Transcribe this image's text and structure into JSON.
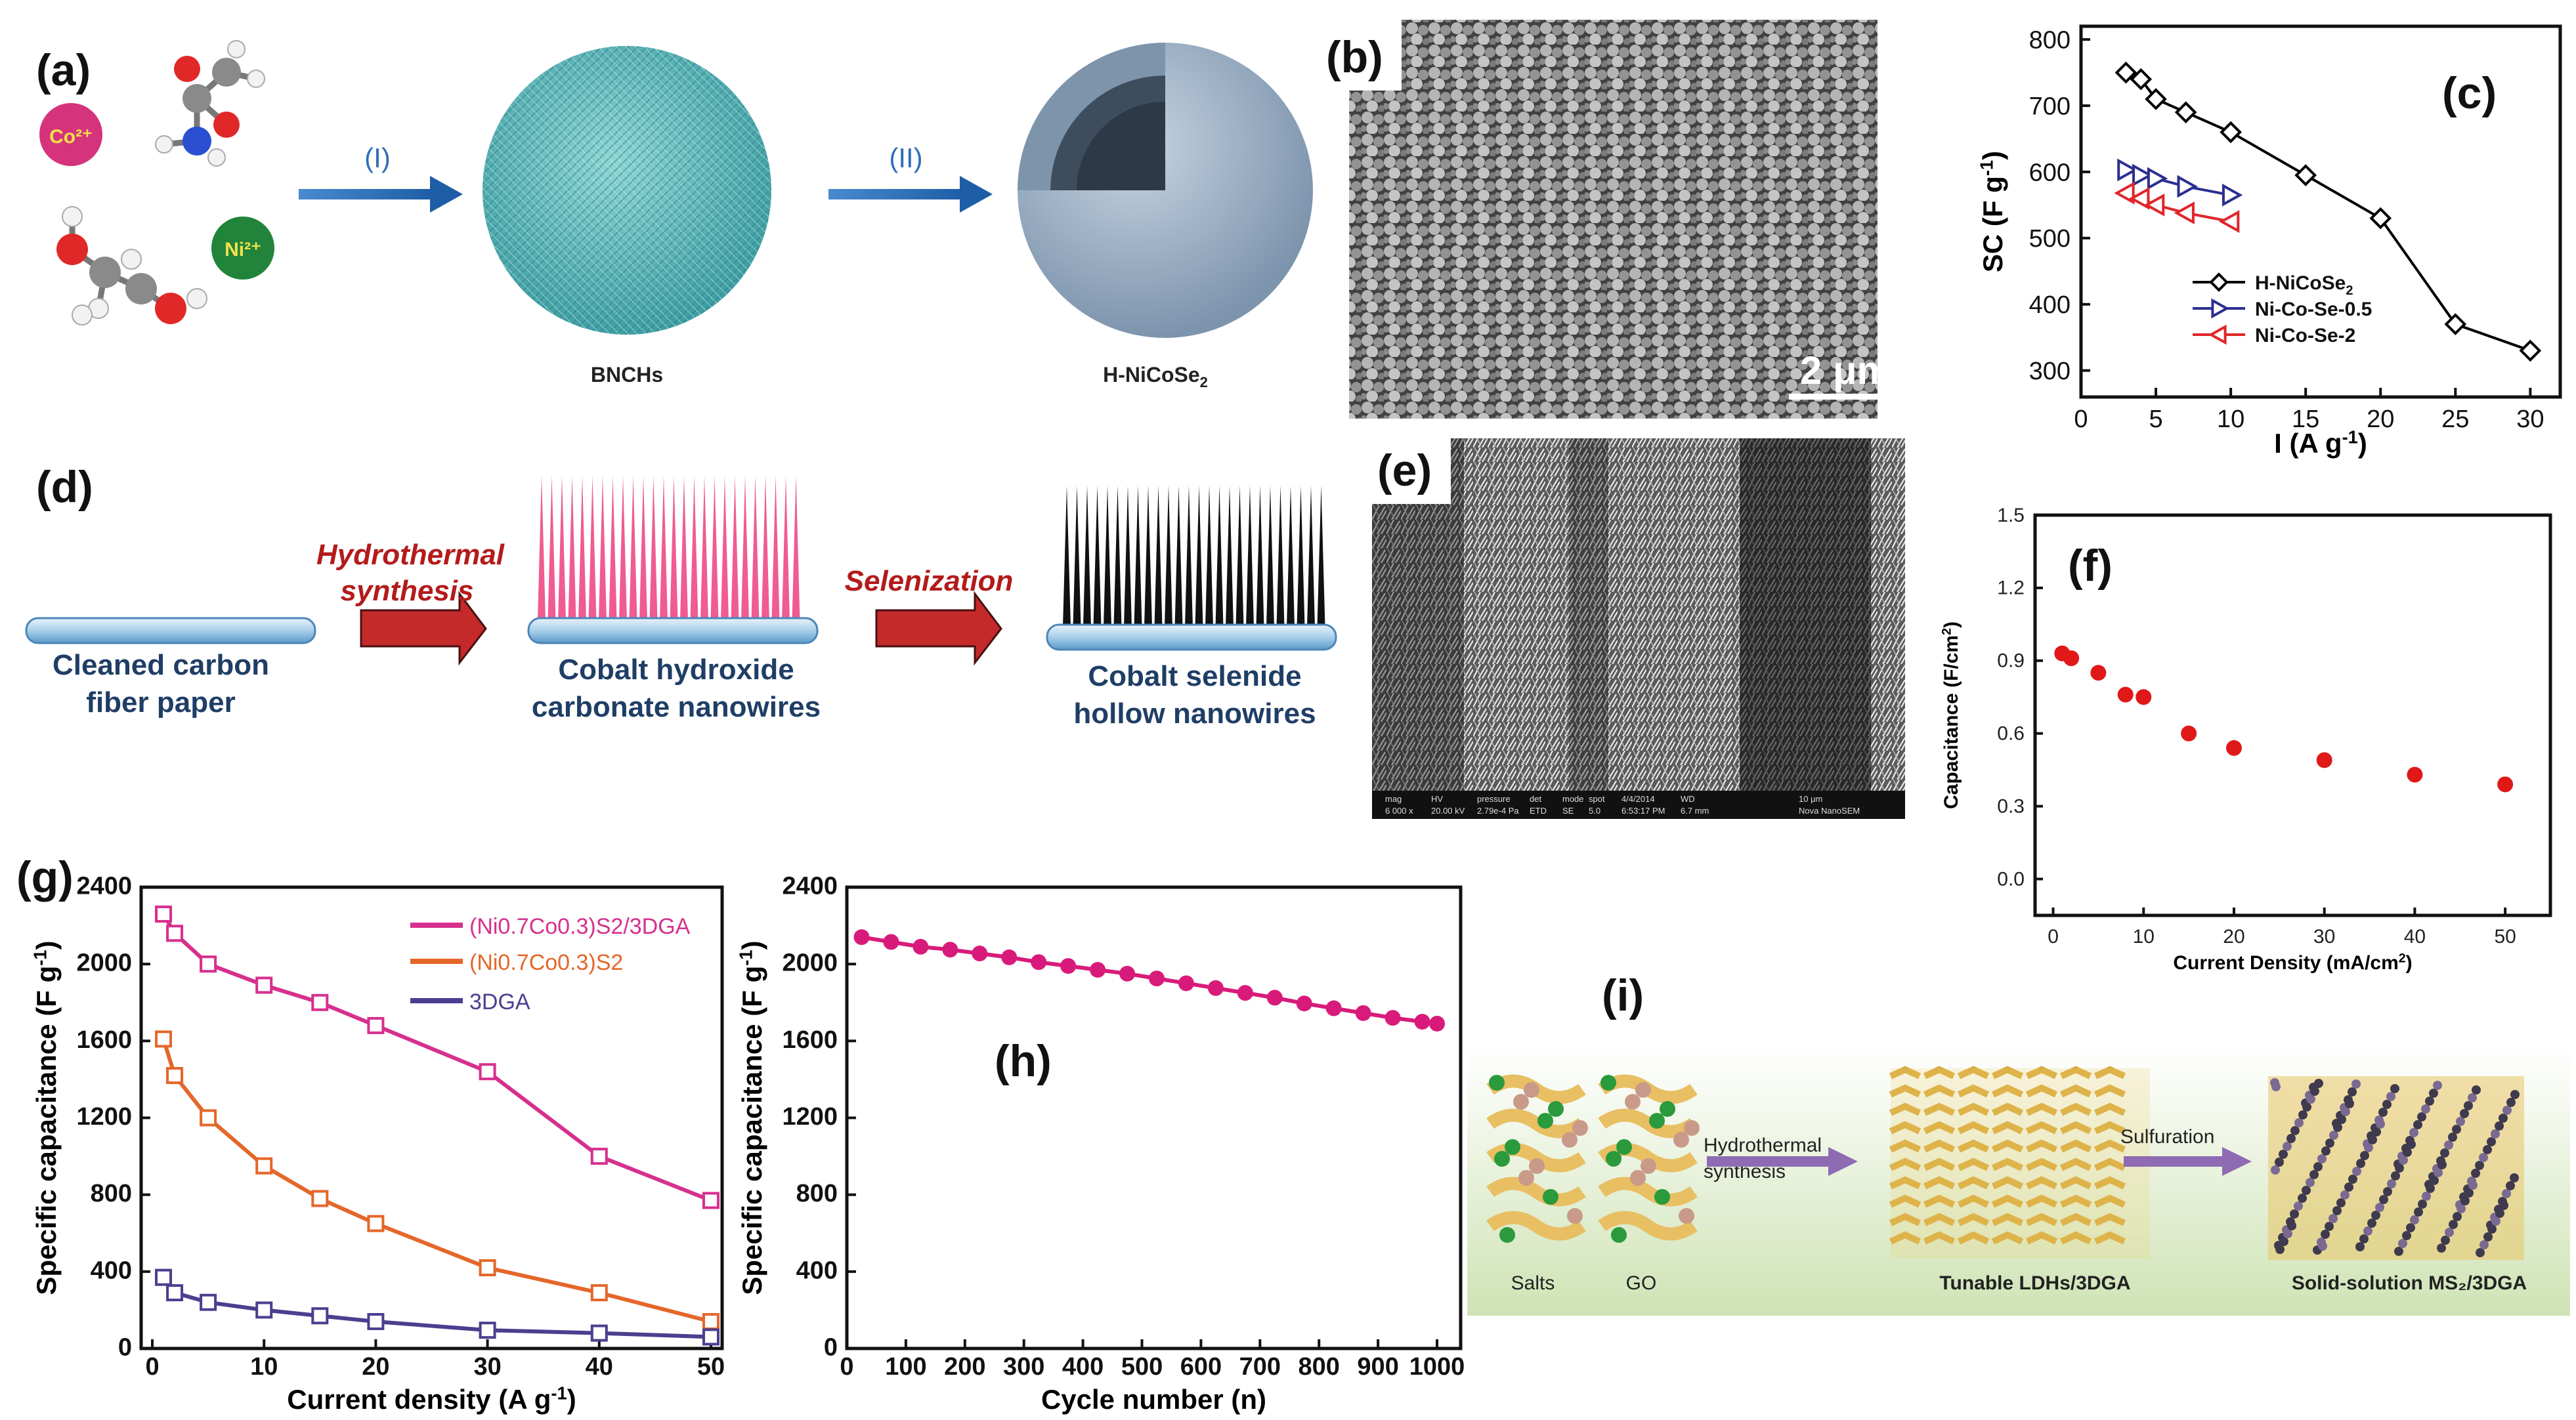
{
  "panel_labels": {
    "a": "(a)",
    "b": "(b)",
    "c": "(c)",
    "d": "(d)",
    "e": "(e)",
    "f": "(f)",
    "g": "(g)",
    "h": "(h)",
    "i": "(i)"
  },
  "panel_a": {
    "ions": [
      "Co²⁺",
      "Ni²⁺"
    ],
    "arrow1": "(I)",
    "arrow2": "(II)",
    "product1": "BNCHs",
    "product2": "H-NiCoSe",
    "product2_sub": "2",
    "colors": {
      "arrow": "#2f6fb6",
      "bnch": "#5fb9bb",
      "sphere": "#9fb3c8",
      "co": "#d6337d",
      "ni": "#22843a"
    }
  },
  "panel_b": {
    "scalebar": "2 μm"
  },
  "panel_d": {
    "step1_label": "Hydrothermal",
    "step1_label2": "synthesis",
    "step2_label": "Selenization",
    "item1": [
      "Cleaned carbon",
      "fiber paper"
    ],
    "item2": [
      "Cobalt hydroxide",
      "carbonate nanowires"
    ],
    "item3": [
      "Cobalt selenide",
      "hollow nanowires"
    ],
    "colors": {
      "step_text": "#b31b1b",
      "item_text": "#1f3e66",
      "pink": "#f05b92",
      "arrow": "#c42a2a"
    }
  },
  "panel_e": {
    "infobar": [
      "mag",
      "HV",
      "pressure",
      "det",
      "mode",
      "spot",
      "4/4/2014",
      "WD",
      "10 μm"
    ],
    "infobar2": [
      "6 000 x",
      "20.00 kV",
      "2.79e-4 Pa",
      "ETD",
      "SE",
      "5.0",
      "6:53:17 PM",
      "6.7 mm",
      "Nova NanoSEM"
    ]
  },
  "panel_i": {
    "labels": [
      "Hydrothermal",
      "synthesis",
      "Sulfuration",
      "Salts",
      "GO",
      "Tunable LDHs/3DGA",
      "Solid-solution MS₂/3DGA"
    ]
  },
  "chart_data": [
    {
      "id": "c",
      "type": "line",
      "xlabel": "I (A g",
      "xlabel_sup": "-1",
      "xlabel_end": ")",
      "ylabel": "SC (F g",
      "ylabel_sup": "-1",
      "ylabel_end": ")",
      "xlim": [
        0,
        32
      ],
      "ylim": [
        260,
        820
      ],
      "xticks": [
        0,
        5,
        10,
        15,
        20,
        25,
        30
      ],
      "yticks": [
        300,
        400,
        500,
        600,
        700,
        800
      ],
      "legend_position": "bottom-right",
      "series": [
        {
          "name": "H-NiCoSe",
          "name_sub": "2",
          "marker": "diamond",
          "color": "#000000",
          "x": [
            3,
            4,
            5,
            7,
            10,
            15,
            20,
            25,
            30
          ],
          "y": [
            750,
            740,
            710,
            690,
            660,
            595,
            530,
            370,
            330
          ]
        },
        {
          "name": "Ni-Co-Se-0.5",
          "marker": "triangle-right",
          "color": "#2b2f8f",
          "x": [
            3,
            4,
            5,
            7,
            10
          ],
          "y": [
            603,
            595,
            590,
            578,
            565
          ]
        },
        {
          "name": "Ni-Co-Se-2",
          "marker": "triangle-left",
          "color": "#e0262b",
          "x": [
            3,
            4,
            5,
            7,
            10
          ],
          "y": [
            568,
            560,
            550,
            538,
            525
          ]
        }
      ]
    },
    {
      "id": "f",
      "type": "scatter",
      "xlabel": "Current Density (mA/cm",
      "xlabel_sup": "2",
      "xlabel_end": ")",
      "ylabel": "Capacitance (F/cm",
      "ylabel_sup": "2",
      "ylabel_end": ")",
      "xlim": [
        -2,
        55
      ],
      "ylim": [
        -0.15,
        1.5
      ],
      "xticks": [
        0,
        10,
        20,
        30,
        40,
        50
      ],
      "yticks": [
        0.0,
        0.3,
        0.6,
        0.9,
        1.2,
        1.5
      ],
      "ytick_labels": [
        "0.0",
        "0.3",
        "0.6",
        "0.9",
        "1.2",
        "1.5"
      ],
      "series": [
        {
          "color": "#e01818",
          "x": [
            1,
            2,
            5,
            8,
            10,
            15,
            20,
            30,
            40,
            50
          ],
          "y": [
            0.93,
            0.91,
            0.85,
            0.76,
            0.75,
            0.6,
            0.54,
            0.49,
            0.43,
            0.39
          ]
        }
      ]
    },
    {
      "id": "g",
      "type": "line",
      "xlabel": "Current density (A g",
      "xlabel_sup": "-1",
      "xlabel_end": ")",
      "ylabel": "Specific capacitance (F g",
      "ylabel_sup": "-1",
      "ylabel_end": ")",
      "xlim": [
        -1,
        51
      ],
      "ylim": [
        0,
        2400
      ],
      "xticks": [
        0,
        10,
        20,
        30,
        40,
        50
      ],
      "yticks": [
        0,
        400,
        800,
        1200,
        1600,
        2000,
        2400
      ],
      "legend_position": "top-right",
      "series": [
        {
          "name": "(Ni0.7Co0.3)S2/3DGA",
          "marker": "square-open",
          "color": "#d6308e",
          "x": [
            1,
            2,
            5,
            10,
            15,
            20,
            30,
            40,
            50
          ],
          "y": [
            2260,
            2160,
            2000,
            1890,
            1800,
            1680,
            1440,
            1000,
            770
          ]
        },
        {
          "name": "(Ni0.7Co0.3)S2",
          "marker": "square-open",
          "color": "#e4672a",
          "x": [
            1,
            2,
            5,
            10,
            15,
            20,
            30,
            40,
            50
          ],
          "y": [
            1610,
            1420,
            1200,
            950,
            780,
            650,
            420,
            290,
            140
          ]
        },
        {
          "name": "3DGA",
          "marker": "square-open",
          "color": "#4a3f8f",
          "x": [
            1,
            2,
            5,
            10,
            15,
            20,
            30,
            40,
            50
          ],
          "y": [
            370,
            290,
            240,
            200,
            170,
            140,
            95,
            80,
            60
          ]
        }
      ]
    },
    {
      "id": "h",
      "type": "line",
      "xlabel": "Cycle number (n)",
      "ylabel": "Specific capacitance (F g",
      "ylabel_sup": "-1",
      "ylabel_end": ")",
      "xlim": [
        0,
        1040
      ],
      "ylim": [
        0,
        2400
      ],
      "xticks": [
        0,
        100,
        200,
        300,
        400,
        500,
        600,
        700,
        800,
        900,
        1000
      ],
      "yticks": [
        0,
        400,
        800,
        1200,
        1600,
        2000,
        2400
      ],
      "series": [
        {
          "color": "#d81b7a",
          "x": [
            25,
            75,
            125,
            175,
            225,
            275,
            325,
            375,
            425,
            475,
            525,
            575,
            625,
            675,
            725,
            775,
            825,
            875,
            925,
            975,
            1000
          ],
          "y": [
            2140,
            2115,
            2090,
            2075,
            2055,
            2035,
            2010,
            1990,
            1970,
            1950,
            1925,
            1900,
            1875,
            1850,
            1825,
            1795,
            1770,
            1745,
            1720,
            1700,
            1690
          ]
        }
      ]
    }
  ]
}
